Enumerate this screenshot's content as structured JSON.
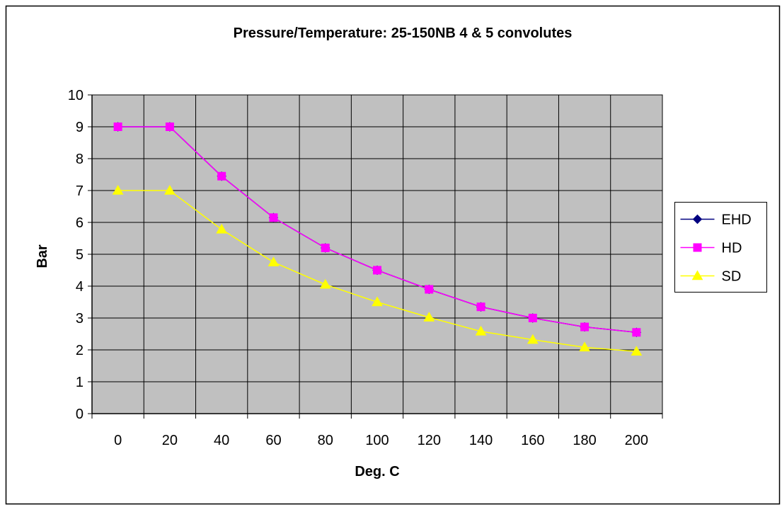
{
  "chart_data": {
    "type": "line",
    "title": "Pressure/Temperature: 25-150NB 4 & 5 convolutes",
    "xlabel": "Deg. C",
    "ylabel": "Bar",
    "categories": [
      "0",
      "20",
      "40",
      "60",
      "80",
      "100",
      "120",
      "140",
      "160",
      "180",
      "200"
    ],
    "ylim": [
      0,
      10
    ],
    "yticks": [
      "0",
      "1",
      "2",
      "3",
      "4",
      "5",
      "6",
      "7",
      "8",
      "9",
      "10"
    ],
    "grid": true,
    "legend_position": "right",
    "plot_background": "#c0c0c0",
    "series": [
      {
        "name": "EHD",
        "color": "#000080",
        "marker": "diamond",
        "values": [
          9.0,
          9.0,
          7.45,
          6.15,
          5.2,
          4.5,
          3.9,
          3.35,
          3.0,
          2.72,
          2.55
        ]
      },
      {
        "name": "HD",
        "color": "#ff00ff",
        "marker": "square",
        "values": [
          9.0,
          9.0,
          7.45,
          6.15,
          5.2,
          4.5,
          3.9,
          3.35,
          3.0,
          2.72,
          2.55
        ]
      },
      {
        "name": "SD",
        "color": "#ffff00",
        "marker": "triangle",
        "values": [
          7.0,
          7.0,
          5.78,
          4.75,
          4.05,
          3.5,
          3.02,
          2.58,
          2.32,
          2.08,
          1.95
        ]
      }
    ]
  }
}
